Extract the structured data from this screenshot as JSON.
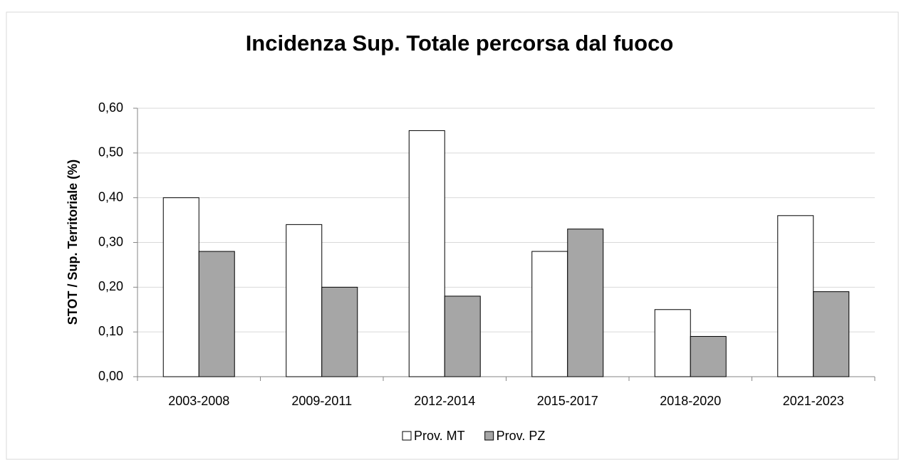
{
  "chart_data": {
    "type": "bar",
    "title": "Incidenza Sup. Totale percorsa dal fuoco",
    "y_label": "STOT / Sup. Territoriale (%)",
    "categories": [
      "2003-2008",
      "2009-2011",
      "2012-2014",
      "2015-2017",
      "2018-2020",
      "2021-2023"
    ],
    "series": [
      {
        "name": "Prov. MT",
        "color": "#ffffff",
        "values": [
          0.4,
          0.34,
          0.55,
          0.28,
          0.15,
          0.36
        ]
      },
      {
        "name": "Prov. PZ",
        "color": "#a6a6a6",
        "values": [
          0.28,
          0.2,
          0.18,
          0.33,
          0.09,
          0.19
        ]
      }
    ],
    "ylim": [
      0,
      0.6
    ],
    "yticks": [
      {
        "value": 0,
        "label": "0,00"
      },
      {
        "value": 0.1,
        "label": "0,10"
      },
      {
        "value": 0.2,
        "label": "0,20"
      },
      {
        "value": 0.3,
        "label": "0,30"
      },
      {
        "value": 0.4,
        "label": "0,40"
      },
      {
        "value": 0.5,
        "label": "0,50"
      },
      {
        "value": 0.6,
        "label": "0,60"
      }
    ],
    "grid": true,
    "legend": "bottom"
  }
}
